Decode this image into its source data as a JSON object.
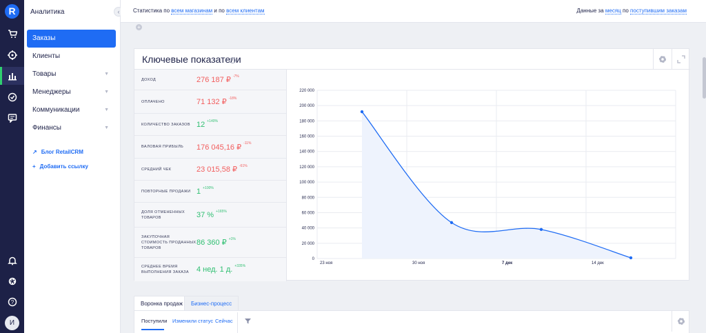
{
  "app": {
    "logo_letter": "R",
    "avatar_letter": "И"
  },
  "rail": {
    "icons": [
      "logo-icon",
      "cart-icon",
      "target-icon",
      "analytics-icon",
      "check-circle-icon",
      "chat-icon",
      "bell-icon",
      "gear-icon",
      "help-icon"
    ]
  },
  "sidebar": {
    "title": "Аналитика",
    "items": [
      {
        "label": "Заказы"
      },
      {
        "label": "Клиенты"
      },
      {
        "label": "Товары"
      },
      {
        "label": "Менеджеры"
      },
      {
        "label": "Коммуникации"
      },
      {
        "label": "Финансы"
      }
    ],
    "links": [
      {
        "label": "Блог RetailCRM",
        "icon": "↗"
      },
      {
        "label": "Добавить ссылку",
        "icon": "+"
      }
    ]
  },
  "topbar": {
    "stats_prefix": "Статистика по",
    "stores_link": "всем магазинам",
    "and_text": "и по",
    "clients_link": "всем клиентам",
    "data_prefix": "Данные за",
    "period_link": "месяц",
    "by_text": "по",
    "orders_link": "поступившим заказам"
  },
  "card": {
    "title": "Ключевые показатели",
    "info": "?"
  },
  "kpis": [
    {
      "label": "Доход",
      "value": "276 187 ₽",
      "change": "-7%",
      "trend": "down"
    },
    {
      "label": "Оплачено",
      "value": "71 132 ₽",
      "change": "-18%",
      "trend": "down"
    },
    {
      "label": "Количество заказов",
      "value": "12",
      "change": "+140%",
      "trend": "up"
    },
    {
      "label": "Валовая прибыль",
      "value": "176 045,16 ₽",
      "change": "-11%",
      "trend": "down"
    },
    {
      "label": "Средний чек",
      "value": "23 015,58 ₽",
      "change": "-61%",
      "trend": "down"
    },
    {
      "label": "Повторные продажи",
      "value": "1",
      "change": "+100%",
      "trend": "up"
    },
    {
      "label": "Доля отмененных товаров",
      "value": "37 %",
      "change": "+165%",
      "trend": "up"
    },
    {
      "label": "Закупочная стоимость проданных товаров",
      "value": "86 360 ₽",
      "change": "+1%",
      "trend": "up"
    },
    {
      "label": "Среднее время выполнения заказа",
      "value": "4 нед. 1 д.",
      "change": "+335%",
      "trend": "up"
    }
  ],
  "chart_data": {
    "type": "line",
    "title": "",
    "categories": [
      "23 ноя",
      "30 ноя",
      "7 дек",
      "14 дек"
    ],
    "x_index": [
      0.5,
      1.5,
      2.5,
      3.5
    ],
    "values": [
      192000,
      47000,
      38000,
      1000
    ],
    "ylim": [
      0,
      220000
    ],
    "yticks": [
      "0",
      "20 000",
      "40 000",
      "60 000",
      "80 000",
      "100 000",
      "120 000",
      "140 000",
      "160 000",
      "180 000",
      "200 000",
      "220 000"
    ],
    "ytick_values": [
      0,
      20000,
      40000,
      60000,
      80000,
      100000,
      120000,
      140000,
      160000,
      180000,
      200000,
      220000
    ],
    "color": "#1f6cf4",
    "fill": "#eef3fd"
  },
  "bottom": {
    "tabs": [
      {
        "label": "Воронка продаж"
      },
      {
        "label": "Бизнес-процесс"
      }
    ],
    "subtabs": [
      {
        "label": "Поступили"
      },
      {
        "label": "Изменили статус"
      },
      {
        "label": "Сейчас"
      }
    ]
  }
}
